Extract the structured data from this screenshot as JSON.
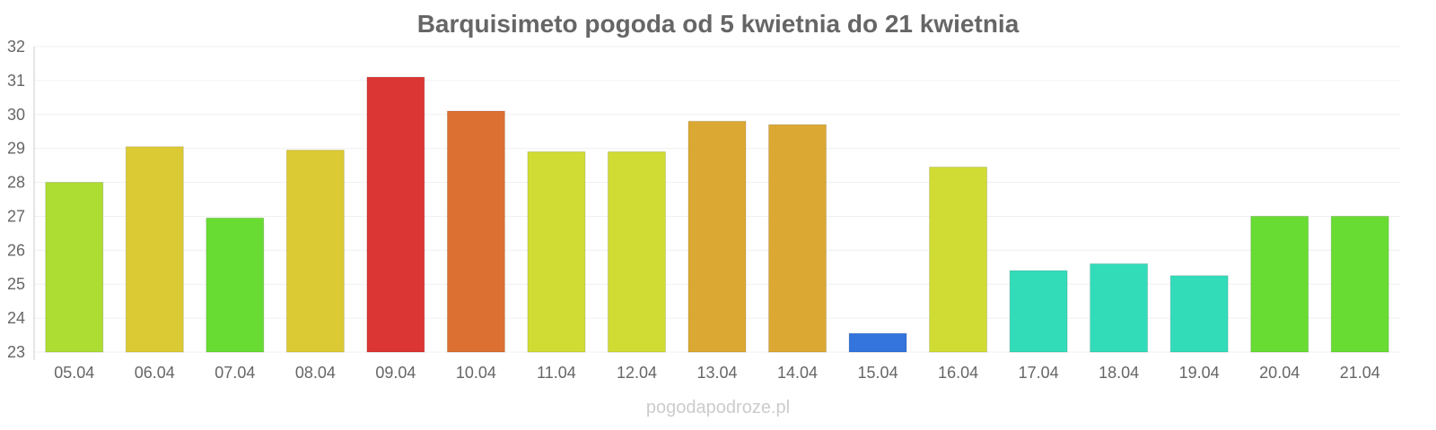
{
  "chart_data": {
    "type": "bar",
    "title": "Barquisimeto pogoda od 5 kwietnia do 21 kwietnia",
    "xlabel": "",
    "ylabel": "",
    "ylim": [
      23,
      32
    ],
    "yticks": [
      "23",
      "24",
      "25",
      "26",
      "27",
      "28",
      "29",
      "30",
      "31",
      "32"
    ],
    "grid": true,
    "categories": [
      "05.04",
      "06.04",
      "07.04",
      "08.04",
      "09.04",
      "10.04",
      "11.04",
      "12.04",
      "13.04",
      "14.04",
      "15.04",
      "16.04",
      "17.04",
      "18.04",
      "19.04",
      "20.04",
      "21.04"
    ],
    "values": [
      28.0,
      29.05,
      26.95,
      28.95,
      31.1,
      30.1,
      28.9,
      28.9,
      29.8,
      29.7,
      23.55,
      28.45,
      25.4,
      25.6,
      25.25,
      27.0,
      27.0
    ],
    "colors": [
      "#addc33",
      "#dbca33",
      "#68dc33",
      "#dbca33",
      "#db3633",
      "#dc7033",
      "#d0dc33",
      "#d0dc33",
      "#dba833",
      "#dba833",
      "#3375dc",
      "#d0dc33",
      "#33dcb9",
      "#33dcb9",
      "#33dcb9",
      "#68dc33",
      "#68dc33"
    ]
  },
  "watermark": "pogodapodroze.pl"
}
